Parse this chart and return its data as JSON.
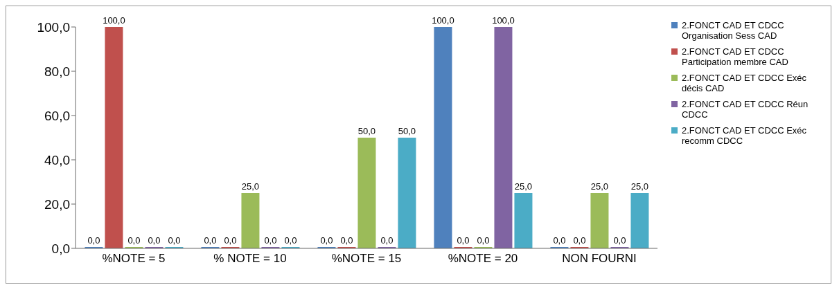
{
  "chart_data": {
    "type": "bar",
    "categories": [
      "%NOTE = 5",
      "% NOTE = 10",
      "%NOTE = 15",
      "%NOTE = 20",
      "NON FOURNI"
    ],
    "series": [
      {
        "name": "2.FONCT CAD ET CDCC Organisation Sess CAD",
        "color": "#4f81bd",
        "values": [
          0,
          0,
          0,
          100,
          0
        ],
        "value_labels": [
          "0,0",
          "0,0",
          "0,0",
          "100,0",
          "0,0"
        ]
      },
      {
        "name": "2.FONCT CAD ET CDCC Participation membre CAD",
        "color": "#c0504d",
        "values": [
          100,
          0,
          0,
          0,
          0
        ],
        "value_labels": [
          "100,0",
          "0,0",
          "0,0",
          "0,0",
          "0,0"
        ]
      },
      {
        "name": "2.FONCT CAD ET CDCC Exéc décis CAD",
        "color": "#9bbb59",
        "values": [
          0,
          25,
          50,
          0,
          25
        ],
        "value_labels": [
          "0,0",
          "25,0",
          "50,0",
          "0,0",
          "25,0"
        ]
      },
      {
        "name": "2.FONCT CAD ET CDCC Réun CDCC",
        "color": "#8064a2",
        "values": [
          0,
          0,
          0,
          100,
          0
        ],
        "value_labels": [
          "0,0",
          "0,0",
          "0,0",
          "100,0",
          "0,0"
        ]
      },
      {
        "name": "2.FONCT CAD ET CDCC Exéc recomm CDCC",
        "color": "#4bacc6",
        "values": [
          0,
          0,
          50,
          25,
          25
        ],
        "value_labels": [
          "0,0",
          "0,0",
          "50,0",
          "25,0",
          "25,0"
        ]
      }
    ],
    "ylim": [
      0,
      100
    ],
    "yticks": [
      {
        "value": 0,
        "label": "0,0"
      },
      {
        "value": 20,
        "label": "20,0"
      },
      {
        "value": 40,
        "label": "40,0"
      },
      {
        "value": 60,
        "label": "60,0"
      },
      {
        "value": 80,
        "label": "80,0"
      },
      {
        "value": 100,
        "label": "100,0"
      }
    ],
    "grid": false,
    "legend": "right"
  }
}
